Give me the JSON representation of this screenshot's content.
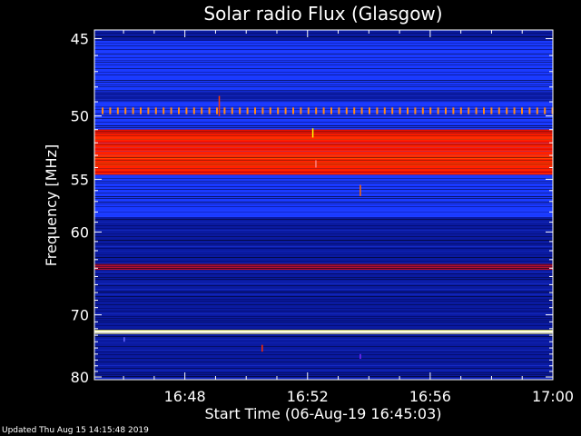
{
  "chart_data": {
    "type": "heatmap",
    "title": "Solar radio Flux (Glasgow)",
    "xlabel": "Start Time (06-Aug-19 16:45:03)",
    "ylabel": "Frequency [MHz]",
    "x_ticks": [
      "16:48",
      "16:52",
      "16:56",
      "17:00"
    ],
    "x_tick_values_min": [
      3,
      7,
      11,
      15
    ],
    "xlim_min": [
      0.05,
      15.0
    ],
    "y_ticks": [
      45,
      50,
      55,
      60,
      70,
      80
    ],
    "ylim_mhz": [
      44.5,
      80.5
    ],
    "y_scale": "reciprocal",
    "colors": {
      "background_low": "#000033",
      "low": "#0a1aa0",
      "mid": "#1a3aff",
      "high": "#ff1a00",
      "very_high": "#ffff80",
      "peak": "#ffffff"
    },
    "bands": [
      {
        "from_mhz": 44.5,
        "to_mhz": 45.1,
        "level": "low"
      },
      {
        "from_mhz": 45.1,
        "to_mhz": 48.3,
        "level": "mid"
      },
      {
        "from_mhz": 48.3,
        "to_mhz": 49.0,
        "level": "low"
      },
      {
        "from_mhz": 49.0,
        "to_mhz": 49.4,
        "level": "mid"
      },
      {
        "from_mhz": 49.4,
        "to_mhz": 49.8,
        "level": "markers"
      },
      {
        "from_mhz": 49.8,
        "to_mhz": 51.0,
        "level": "mid"
      },
      {
        "from_mhz": 51.0,
        "to_mhz": 54.6,
        "level": "high"
      },
      {
        "from_mhz": 54.6,
        "to_mhz": 58.5,
        "level": "mid"
      },
      {
        "from_mhz": 58.5,
        "to_mhz": 63.5,
        "level": "low"
      },
      {
        "from_mhz": 63.5,
        "to_mhz": 64.2,
        "level": "high-dark"
      },
      {
        "from_mhz": 64.2,
        "to_mhz": 72.2,
        "level": "low"
      },
      {
        "from_mhz": 72.2,
        "to_mhz": 72.8,
        "level": "peak"
      },
      {
        "from_mhz": 72.8,
        "to_mhz": 80.5,
        "level": "low"
      }
    ]
  },
  "footer": {
    "updated_text": "Updated Thu Aug 15 14:15:48 2019"
  }
}
